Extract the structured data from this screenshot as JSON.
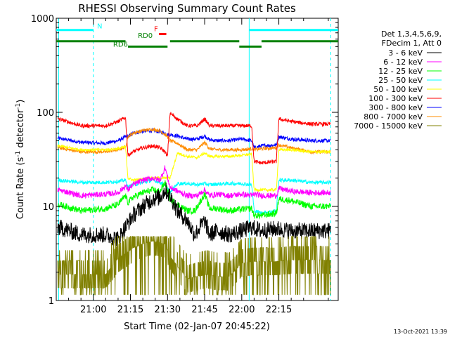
{
  "chart_data": {
    "type": "line",
    "title": "RHESSI Observing Summary Count Rates",
    "xlabel": "Start Time (02-Jan-07 20:45:22)",
    "ylabel_main": "Count Rate (s",
    "ylabel_sup1": "-1",
    "ylabel_mid": " detector",
    "ylabel_sup2": "-1",
    "ylabel_end": ")",
    "yscale": "log",
    "ylim": [
      1,
      1000
    ],
    "xlim_minutes": [
      -15,
      99
    ],
    "x_ticks": [
      {
        "m": 0,
        "label": "21:00"
      },
      {
        "m": 15,
        "label": "21:15"
      },
      {
        "m": 30,
        "label": "21:30"
      },
      {
        "m": 45,
        "label": "21:45"
      },
      {
        "m": 60,
        "label": "22:00"
      },
      {
        "m": 75,
        "label": "22:15"
      }
    ],
    "y_ticks": [
      {
        "v": 1,
        "label": "1"
      },
      {
        "v": 10,
        "label": "10"
      },
      {
        "v": 100,
        "label": "100"
      },
      {
        "v": 1000,
        "label": "1000"
      }
    ],
    "legend_header": [
      "Det 1,3,4,5,6,9,",
      "FDecim 1, Att 0"
    ],
    "series": [
      {
        "name": "3 - 6 keV",
        "color": "#000000",
        "x": [
          -14,
          -5,
          5,
          10,
          16,
          20,
          24,
          27,
          29,
          31,
          34,
          38,
          41,
          43,
          45,
          47,
          50,
          55,
          60,
          64,
          68,
          74,
          80,
          88
        ],
        "y": [
          6,
          5,
          5,
          4.5,
          8,
          10,
          12,
          12.5,
          15,
          13,
          9,
          7,
          5,
          6,
          7,
          5,
          5.5,
          5,
          5.5,
          6,
          5.5,
          5.8,
          5.5,
          5.5
        ]
      },
      {
        "name": "6 - 12 keV",
        "color": "#ff00ff",
        "x": [
          -14,
          -5,
          5,
          10,
          13,
          14,
          16,
          20,
          24,
          27,
          29,
          31,
          34,
          38,
          42,
          45,
          47,
          50,
          55,
          60,
          64,
          65,
          68,
          74,
          75,
          80,
          88
        ],
        "y": [
          15,
          13,
          13.5,
          14,
          16.5,
          15,
          17,
          19,
          20,
          19,
          26,
          16,
          14.5,
          13,
          13,
          15,
          13,
          13.5,
          13,
          13.5,
          13,
          13.5,
          13,
          13,
          15.5,
          14.5,
          14
        ]
      },
      {
        "name": "12 - 25 keV",
        "color": "#00ff00",
        "x": [
          -14,
          -5,
          5,
          10,
          13,
          14,
          16,
          20,
          24,
          27,
          29,
          31,
          34,
          38,
          41,
          43,
          45,
          47,
          50,
          55,
          60,
          64,
          65,
          68,
          74,
          75,
          80,
          88
        ],
        "y": [
          10.5,
          9,
          9.5,
          10.5,
          13,
          11,
          12.5,
          14,
          15,
          14.5,
          18,
          12,
          10.5,
          9,
          9,
          11,
          13.5,
          9.5,
          9.5,
          9,
          9.3,
          9.5,
          8,
          8,
          8.5,
          12,
          11.5,
          10
        ]
      },
      {
        "name": "25 - 50 keV",
        "color": "#00ffff",
        "x": [
          -14,
          -5,
          5,
          10,
          13,
          14,
          16,
          20,
          24,
          27,
          29,
          31,
          34,
          38,
          42,
          45,
          47,
          50,
          55,
          60,
          64,
          65,
          68,
          74,
          75,
          80,
          88
        ],
        "y": [
          19,
          18,
          18,
          18.5,
          19,
          16,
          17,
          18,
          19,
          18,
          17,
          14,
          17.5,
          17.5,
          17,
          17.5,
          17,
          17.3,
          17.5,
          17.5,
          17,
          9,
          8.5,
          9,
          19,
          19,
          18
        ]
      },
      {
        "name": "50 - 100 keV",
        "color": "#ffff00",
        "x": [
          -14,
          -5,
          5,
          10,
          13,
          14,
          16,
          20,
          24,
          27,
          29,
          31,
          34,
          38,
          42,
          45,
          47,
          50,
          55,
          60,
          64,
          65,
          68,
          74,
          75,
          80,
          88
        ],
        "y": [
          44,
          40,
          40,
          41,
          43,
          20,
          19,
          19.5,
          20,
          20,
          20,
          20,
          37,
          34,
          33,
          37,
          34,
          34,
          34,
          35,
          36,
          15,
          15,
          15,
          40,
          40,
          38
        ]
      },
      {
        "name": "100 - 300 keV",
        "color": "#ff0000",
        "x": [
          -14,
          -5,
          5,
          10,
          13,
          14,
          16,
          20,
          24,
          27,
          29,
          30,
          31,
          34,
          38,
          42,
          45,
          47,
          50,
          55,
          60,
          64,
          65,
          68,
          74,
          75,
          80,
          88
        ],
        "y": [
          85,
          72,
          72,
          80,
          88,
          35,
          38,
          42,
          44,
          42,
          38,
          34,
          98,
          85,
          72,
          72,
          85,
          72,
          72,
          72,
          72,
          72,
          30,
          29,
          30,
          85,
          80,
          75
        ]
      },
      {
        "name": "300 - 800 keV",
        "color": "#0000ff",
        "x": [
          -14,
          -5,
          5,
          10,
          13,
          14,
          16,
          20,
          24,
          27,
          29,
          30,
          31,
          34,
          38,
          42,
          45,
          47,
          50,
          55,
          60,
          64,
          65,
          68,
          74,
          75,
          80,
          88
        ],
        "y": [
          53,
          48,
          47,
          50,
          55,
          55,
          60,
          63,
          64,
          62,
          60,
          58,
          58,
          56,
          52,
          52,
          56,
          51,
          50,
          50,
          52,
          50,
          42,
          44,
          45,
          55,
          52,
          50
        ]
      },
      {
        "name": "800 - 7000 keV",
        "color": "#ff8c00",
        "x": [
          -14,
          -5,
          5,
          10,
          13,
          14,
          16,
          20,
          24,
          27,
          29,
          30,
          31,
          34,
          38,
          42,
          45,
          47,
          50,
          55,
          60,
          64,
          65,
          68,
          74,
          75,
          80,
          88
        ],
        "y": [
          42,
          38,
          38,
          40,
          43,
          55,
          60,
          64,
          66,
          64,
          58,
          55,
          50,
          47,
          40,
          40,
          48,
          41,
          40,
          40,
          40,
          41,
          40,
          41,
          42,
          45,
          42,
          38
        ]
      },
      {
        "name": "7000 - 15000 keV",
        "color": "#808000",
        "x": [
          -14,
          -5,
          5,
          10,
          16,
          20,
          24,
          27,
          29,
          31,
          34,
          38,
          42,
          46,
          50,
          55,
          60,
          64,
          68,
          74,
          80,
          88
        ],
        "y": [
          1.9,
          1.9,
          1.9,
          2.8,
          3.6,
          4,
          4.3,
          4.1,
          4,
          3,
          2.3,
          1.7,
          1.8,
          1.9,
          1.8,
          1.8,
          2.5,
          2.6,
          2.6,
          2.6,
          2.7,
          2.7
        ]
      }
    ],
    "annotations": [
      {
        "text": "N",
        "color": "#00ffff",
        "x": 1.5,
        "y": 780
      },
      {
        "text": "RD0",
        "color": "#008000",
        "x": 18,
        "y": 620
      },
      {
        "text": "RD6",
        "color": "#008000",
        "x": 8,
        "y": 500
      },
      {
        "text": "F",
        "color": "#ff0000",
        "x": 24.5,
        "y": 730
      }
    ],
    "state_bars": [
      {
        "label": "N",
        "color": "#00ffff",
        "y": 750,
        "segments": [
          [
            -15,
            0
          ],
          [
            63,
            99
          ]
        ]
      },
      {
        "label": "RD0",
        "color": "#008000",
        "y": 570,
        "segments": [
          [
            -15,
            13
          ],
          [
            31,
            59
          ],
          [
            68,
            99
          ]
        ]
      },
      {
        "label": "RD6",
        "color": "#008000",
        "y": 500,
        "segments": [
          [
            14,
            30
          ],
          [
            59,
            68
          ]
        ]
      },
      {
        "label": "F",
        "color": "#ff0000",
        "y": 680,
        "segments": [
          [
            26.5,
            29.5
          ]
        ]
      }
    ],
    "vlines_solid_cyan": [
      -14,
      63
    ],
    "vlines_dashed_cyan": [
      0,
      96
    ]
  },
  "footer": {
    "timestamp": "13-Oct-2021 13:39"
  }
}
